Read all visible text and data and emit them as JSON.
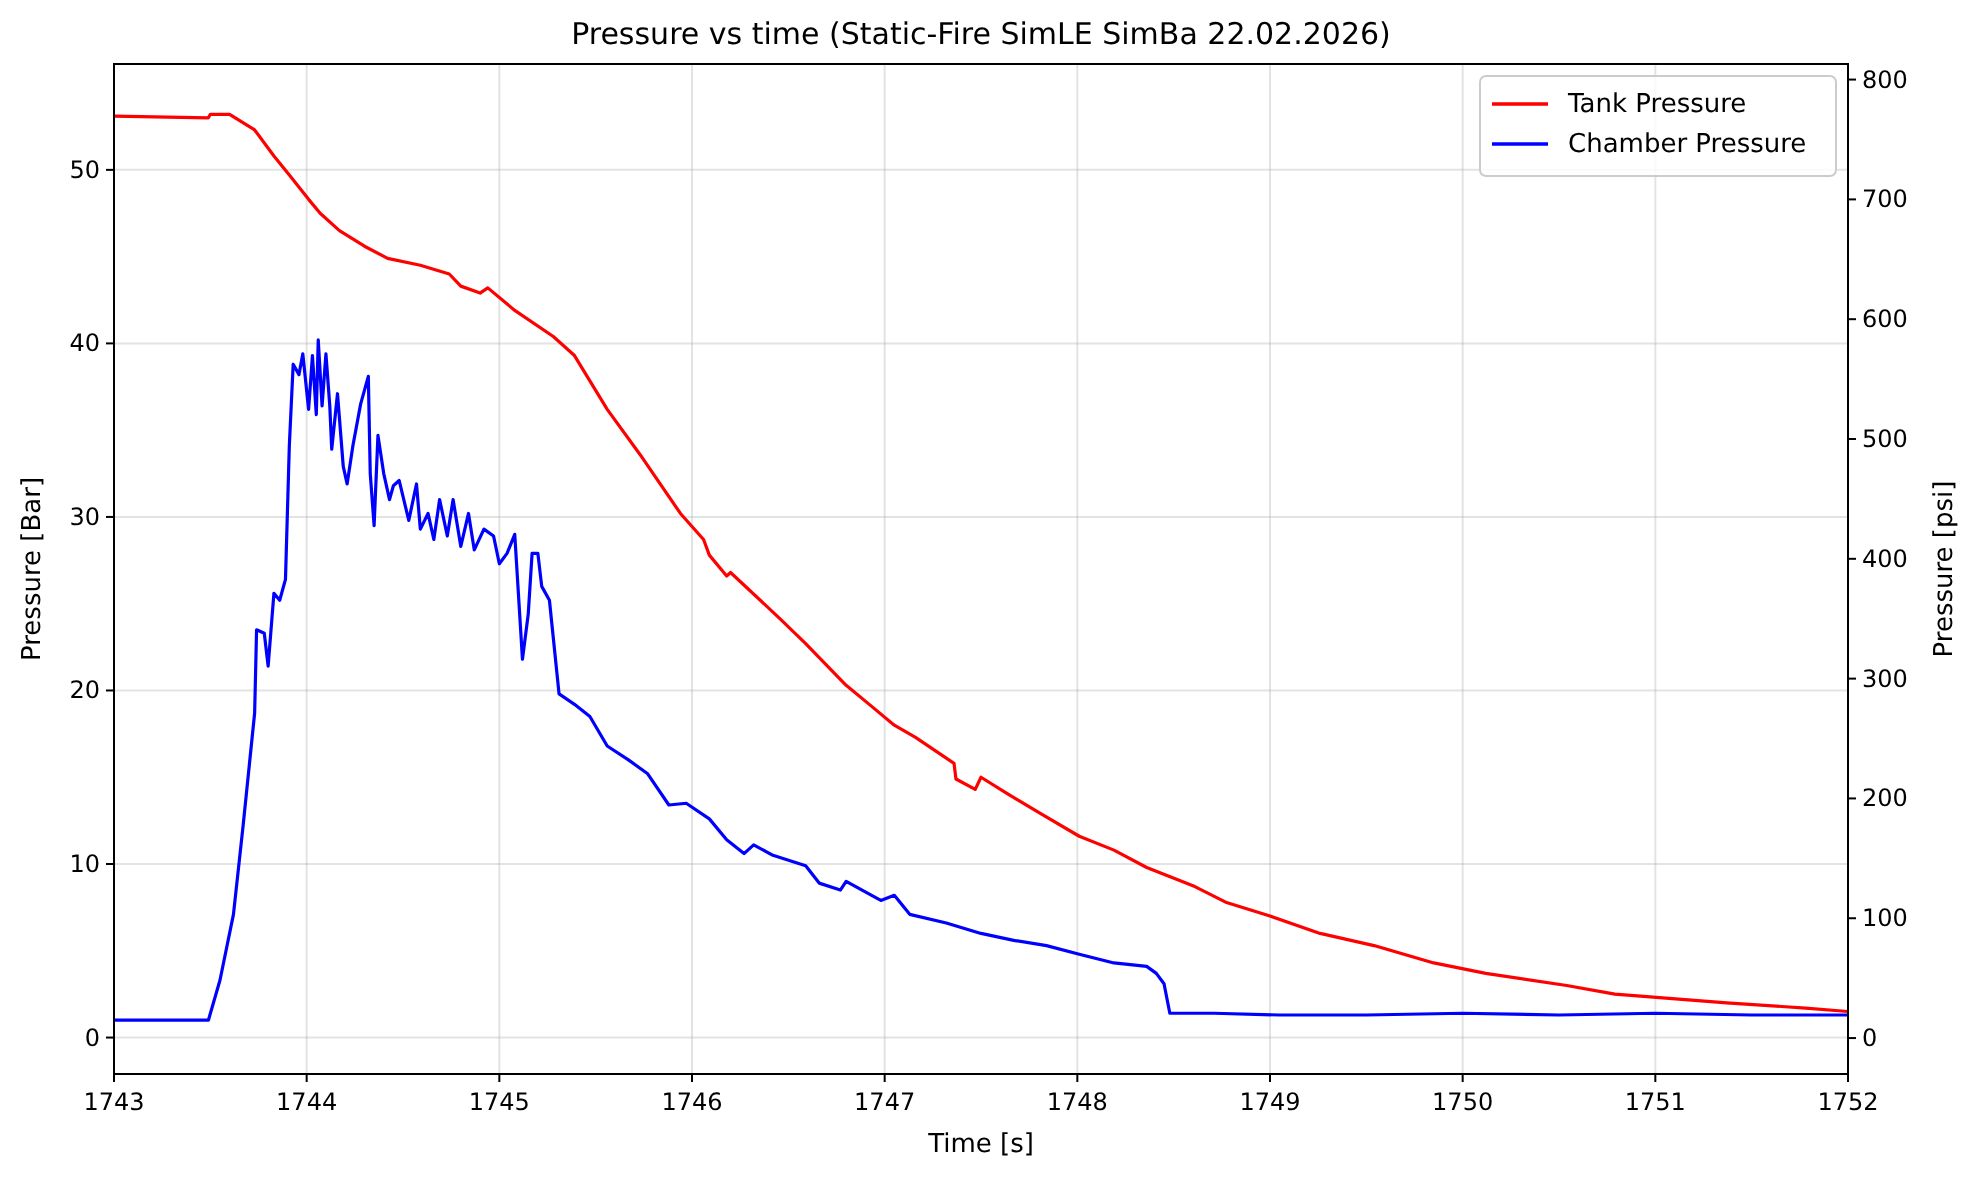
{
  "chart_data": {
    "type": "line",
    "title": "Pressure vs time (Static-Fire SimLE SimBa 22.02.2026)",
    "xlabel": "Time [s]",
    "ylabel": "Pressure [Bar]",
    "y2label": "Pressure [psi]",
    "xlim": [
      1743,
      1752
    ],
    "xticks": [
      1743,
      1744,
      1745,
      1746,
      1747,
      1748,
      1749,
      1750,
      1751,
      1752
    ],
    "ylim": [
      -2.1,
      56.1
    ],
    "yticks": [
      0,
      10,
      20,
      30,
      40,
      50
    ],
    "y2lim": [
      -30,
      813
    ],
    "y2ticks": [
      0,
      100,
      200,
      300,
      400,
      500,
      600,
      700,
      800
    ],
    "grid": true,
    "legend": "top right",
    "series": [
      {
        "name": "Tank Pressure",
        "color": "#ff0000",
        "x": [
          1743,
          1743.49,
          1743.5,
          1743.6,
          1743.73,
          1743.83,
          1743.91,
          1744.01,
          1744.07,
          1744.17,
          1744.3,
          1744.42,
          1744.59,
          1744.74,
          1744.8,
          1744.9,
          1744.94,
          1745.08,
          1745.28,
          1745.39,
          1745.56,
          1745.73,
          1745.94,
          1746.06,
          1746.09,
          1746.18,
          1746.2,
          1746.46,
          1746.59,
          1746.8,
          1746.92,
          1747.05,
          1747.16,
          1747.36,
          1747.37,
          1747.47,
          1747.5,
          1747.63,
          1747.81,
          1748.01,
          1748.19,
          1748.36,
          1748.61,
          1748.77,
          1749.0,
          1749.26,
          1749.54,
          1749.85,
          1750.12,
          1750.54,
          1750.79,
          1751.37,
          1751.78,
          1752
        ],
        "values": [
          53.1,
          53.0,
          53.2,
          53.2,
          52.3,
          50.8,
          49.7,
          48.3,
          47.5,
          46.5,
          45.6,
          44.9,
          44.5,
          44.0,
          43.3,
          42.9,
          43.2,
          41.9,
          40.4,
          39.3,
          36.2,
          33.6,
          30.2,
          28.7,
          27.8,
          26.6,
          26.8,
          24.1,
          22.7,
          20.3,
          19.2,
          18.0,
          17.3,
          15.8,
          14.9,
          14.3,
          15.0,
          14.1,
          12.9,
          11.6,
          10.8,
          9.8,
          8.7,
          7.8,
          7.0,
          6.0,
          5.3,
          4.3,
          3.7,
          3.0,
          2.5,
          2.0,
          1.7,
          1.5
        ]
      },
      {
        "name": "Chamber Pressure",
        "color": "#0000ff",
        "x": [
          1743,
          1743.49,
          1743.55,
          1743.62,
          1743.67,
          1743.73,
          1743.74,
          1743.78,
          1743.8,
          1743.83,
          1743.86,
          1743.89,
          1743.91,
          1743.93,
          1743.96,
          1743.98,
          1744.01,
          1744.03,
          1744.05,
          1744.06,
          1744.08,
          1744.1,
          1744.12,
          1744.13,
          1744.16,
          1744.19,
          1744.21,
          1744.24,
          1744.28,
          1744.32,
          1744.33,
          1744.35,
          1744.37,
          1744.4,
          1744.43,
          1744.45,
          1744.48,
          1744.53,
          1744.57,
          1744.59,
          1744.63,
          1744.66,
          1744.69,
          1744.73,
          1744.76,
          1744.8,
          1744.84,
          1744.87,
          1744.92,
          1744.97,
          1745.0,
          1745.04,
          1745.08,
          1745.12,
          1745.15,
          1745.17,
          1745.2,
          1745.22,
          1745.26,
          1745.31,
          1745.39,
          1745.47,
          1745.56,
          1745.67,
          1745.77,
          1745.88,
          1745.97,
          1746.09,
          1746.18,
          1746.27,
          1746.32,
          1746.42,
          1746.59,
          1746.66,
          1746.77,
          1746.8,
          1746.98,
          1747.05,
          1747.13,
          1747.32,
          1747.5,
          1747.67,
          1747.84,
          1748.01,
          1748.19,
          1748.36,
          1748.41,
          1748.45,
          1748.48,
          1748.71,
          1749.05,
          1749.5,
          1750.0,
          1750.5,
          1751.0,
          1751.5,
          1752
        ],
        "values": [
          1.0,
          1.0,
          3.3,
          7.1,
          12.2,
          18.7,
          23.5,
          23.3,
          21.4,
          25.6,
          25.2,
          26.4,
          34.1,
          38.8,
          38.2,
          39.4,
          36.2,
          39.3,
          35.9,
          40.2,
          36.4,
          39.4,
          36.4,
          33.9,
          37.1,
          32.9,
          31.9,
          34.1,
          36.5,
          38.1,
          32.5,
          29.5,
          34.7,
          32.5,
          31.0,
          31.8,
          32.1,
          29.8,
          31.9,
          29.3,
          30.2,
          28.7,
          31.0,
          28.9,
          31.0,
          28.3,
          30.2,
          28.1,
          29.3,
          28.9,
          27.3,
          27.9,
          29.0,
          21.8,
          24.4,
          27.9,
          27.9,
          26.0,
          25.2,
          19.8,
          19.2,
          18.5,
          16.8,
          16.0,
          15.2,
          13.4,
          13.5,
          12.6,
          11.4,
          10.6,
          11.1,
          10.5,
          9.9,
          8.9,
          8.5,
          9.0,
          7.9,
          8.2,
          7.1,
          6.6,
          6.0,
          5.6,
          5.3,
          4.8,
          4.3,
          4.1,
          3.7,
          3.1,
          1.4,
          1.4,
          1.3,
          1.3,
          1.4,
          1.3,
          1.4,
          1.3,
          1.3
        ]
      }
    ]
  }
}
